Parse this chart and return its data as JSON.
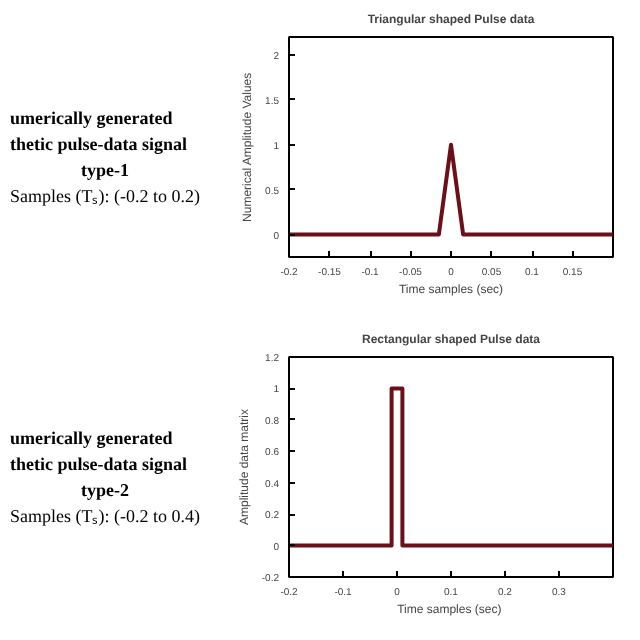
{
  "chart_data": [
    {
      "type": "line",
      "title": "Triangular shaped Pulse data",
      "xlabel": "Time samples (sec)",
      "ylabel": "Numerical Amplitude Values",
      "annotations": [
        "umerically generated",
        "thetic pulse-data signal",
        "type-1",
        "Samples (Tₛ): (-0.2 to 0.2)"
      ],
      "x": [
        -0.2,
        -0.015,
        0,
        0.015,
        0.2
      ],
      "series": [
        {
          "color": "#6b1018",
          "values": [
            0,
            0,
            1,
            0,
            0
          ]
        }
      ],
      "xlim": [
        -0.2,
        0.2
      ],
      "xticks": [
        -0.2,
        -0.15,
        -0.1,
        -0.05,
        0,
        0.05,
        0.1,
        0.15
      ],
      "ylim": [
        -0.25,
        2.2
      ],
      "yticks": [
        0,
        0.5,
        1,
        1.5,
        2
      ],
      "grid": false,
      "marker": "none",
      "line_style": "solid"
    },
    {
      "type": "line",
      "title": "Rectangular shaped Pulse data",
      "xlabel": "Time samples  (sec)",
      "ylabel": "Amplitude data matrix",
      "annotations": [
        "umerically generated",
        "thetic pulse-data signal",
        "type-2",
        "Samples (Tₛ): (-0.2 to 0.4)"
      ],
      "x": [
        -0.2,
        -0.01,
        -0.01,
        0.01,
        0.01,
        0.4
      ],
      "series": [
        {
          "color": "#6b1018",
          "values": [
            0,
            0,
            1,
            1,
            0,
            0
          ]
        }
      ],
      "xlim": [
        -0.2,
        0.4
      ],
      "xticks": [
        -0.2,
        -0.1,
        0,
        0.1,
        0.2,
        0.3
      ],
      "ylim": [
        -0.2,
        1.2
      ],
      "yticks": [
        -0.2,
        0,
        0.2,
        0.4,
        0.6,
        0.8,
        1,
        1.2
      ],
      "grid": false,
      "marker": "none",
      "line_style": "solid"
    }
  ]
}
